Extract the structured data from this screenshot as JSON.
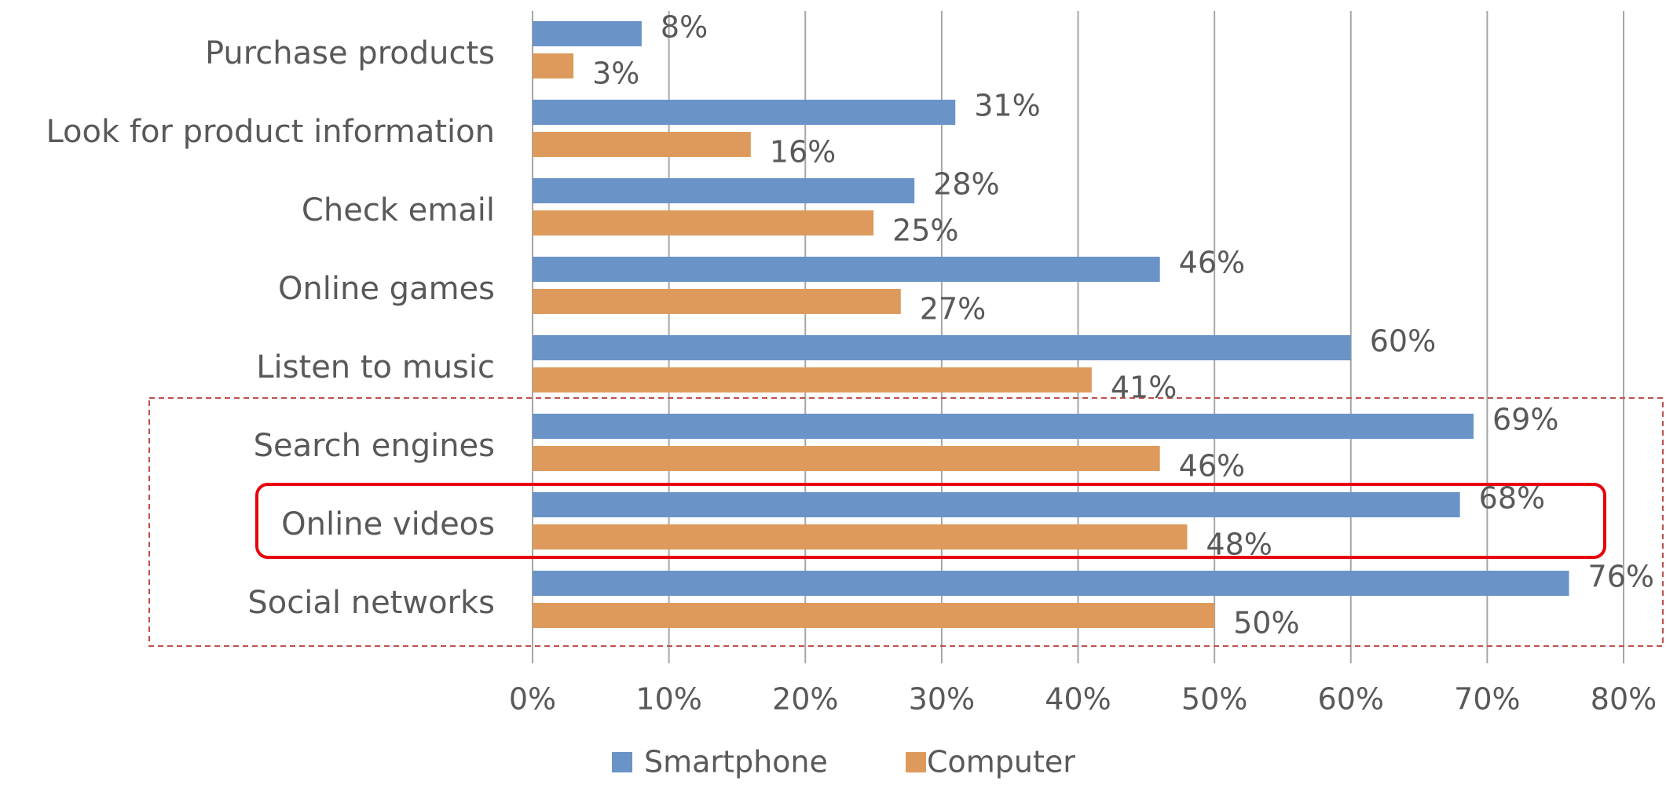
{
  "chart_data": {
    "type": "bar",
    "orientation": "horizontal",
    "categories": [
      "Purchase products",
      "Look for product information",
      "Check email",
      "Online games",
      "Listen to music",
      "Search engines",
      "Online videos",
      "Social networks"
    ],
    "series": [
      {
        "name": "Smartphone",
        "color": "#6a93c8",
        "values": [
          8,
          31,
          28,
          46,
          60,
          69,
          68,
          76
        ],
        "value_labels": [
          "8%",
          "31%",
          "28%",
          "46%",
          "60%",
          "69%",
          "68%",
          "76%"
        ]
      },
      {
        "name": "Computer",
        "color": "#dd9a5c",
        "values": [
          3,
          16,
          25,
          27,
          41,
          46,
          48,
          50
        ],
        "value_labels": [
          "3%",
          "16%",
          "25%",
          "27%",
          "41%",
          "46%",
          "48%",
          "50%"
        ]
      }
    ],
    "xlim": [
      0,
      80
    ],
    "xticks": [
      {
        "value": 0,
        "label": "0%"
      },
      {
        "value": 10,
        "label": "10%"
      },
      {
        "value": 20,
        "label": "20%"
      },
      {
        "value": 30,
        "label": "30%"
      },
      {
        "value": 40,
        "label": "40%"
      },
      {
        "value": 50,
        "label": "50%"
      },
      {
        "value": 60,
        "label": "60%"
      },
      {
        "value": 70,
        "label": "70%"
      },
      {
        "value": 80,
        "label": "80%"
      }
    ],
    "grid": true,
    "legend": "bottom"
  }
}
